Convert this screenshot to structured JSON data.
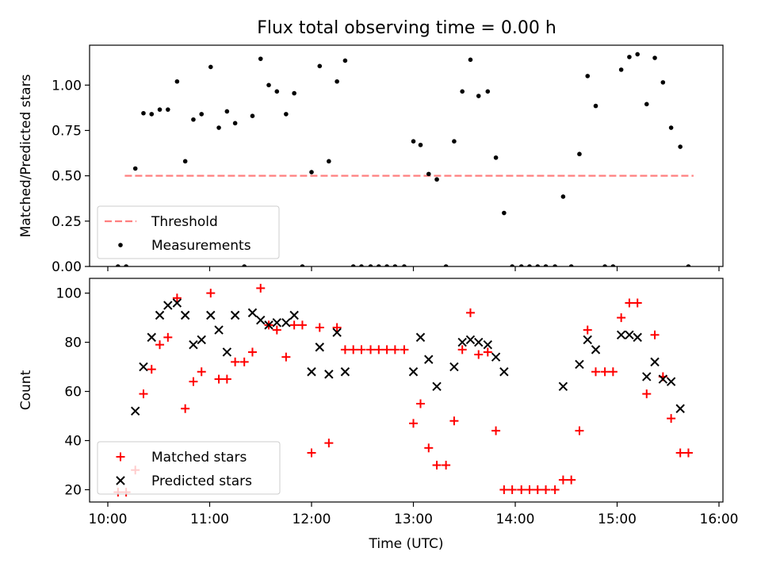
{
  "title": "Flux total observing time = 0.00 h",
  "colors": {
    "threshold": "#ff7f7f",
    "measurement": "#000000",
    "matched": "#ff0000",
    "predicted": "#000000"
  },
  "chart_data": [
    {
      "type": "scatter",
      "panel": "top",
      "ylabel": "Matched/Predicted stars",
      "xlabel": "",
      "xlim": [
        "10:00",
        "16:00"
      ],
      "ylim": [
        0,
        1.22
      ],
      "yticks": [
        0.0,
        0.25,
        0.5,
        0.75,
        1.0
      ],
      "ytick_labels": [
        "0.00",
        "0.25",
        "0.50",
        "0.75",
        "1.00"
      ],
      "legend": {
        "position": "lower-left",
        "entries": [
          "Threshold",
          "Measurements"
        ]
      },
      "threshold": {
        "name": "Threshold",
        "value": 0.5,
        "x_start": "10:10",
        "x_end": "15:45"
      },
      "series": [
        {
          "name": "Measurements",
          "marker": "dot",
          "points": [
            [
              10.1,
              0.0
            ],
            [
              10.18,
              0.0
            ],
            [
              10.27,
              0.54
            ],
            [
              10.35,
              0.845
            ],
            [
              10.43,
              0.84
            ],
            [
              10.51,
              0.865
            ],
            [
              10.59,
              0.865
            ],
            [
              10.68,
              1.02
            ],
            [
              10.76,
              0.58
            ],
            [
              10.84,
              0.81
            ],
            [
              10.92,
              0.84
            ],
            [
              11.01,
              1.1
            ],
            [
              11.09,
              0.765
            ],
            [
              11.17,
              0.855
            ],
            [
              11.25,
              0.79
            ],
            [
              11.34,
              0.0
            ],
            [
              11.42,
              0.83
            ],
            [
              11.5,
              1.145
            ],
            [
              11.58,
              1.0
            ],
            [
              11.66,
              0.965
            ],
            [
              11.75,
              0.84
            ],
            [
              11.83,
              0.955
            ],
            [
              11.91,
              0.0
            ],
            [
              12.0,
              0.52
            ],
            [
              12.08,
              1.105
            ],
            [
              12.17,
              0.58
            ],
            [
              12.25,
              1.02
            ],
            [
              12.33,
              1.135
            ],
            [
              12.41,
              0.0
            ],
            [
              12.49,
              0.0
            ],
            [
              12.58,
              0.0
            ],
            [
              12.66,
              0.0
            ],
            [
              12.74,
              0.0
            ],
            [
              12.82,
              0.0
            ],
            [
              12.91,
              0.0
            ],
            [
              13.0,
              0.69
            ],
            [
              13.07,
              0.67
            ],
            [
              13.15,
              0.51
            ],
            [
              13.23,
              0.48
            ],
            [
              13.32,
              0.0
            ],
            [
              13.4,
              0.69
            ],
            [
              13.48,
              0.965
            ],
            [
              13.56,
              1.14
            ],
            [
              13.64,
              0.94
            ],
            [
              13.73,
              0.965
            ],
            [
              13.81,
              0.6
            ],
            [
              13.89,
              0.295
            ],
            [
              13.97,
              0.0
            ],
            [
              14.06,
              0.0
            ],
            [
              14.14,
              0.0
            ],
            [
              14.22,
              0.0
            ],
            [
              14.3,
              0.0
            ],
            [
              14.39,
              0.0
            ],
            [
              14.47,
              0.385
            ],
            [
              14.55,
              0.0
            ],
            [
              14.63,
              0.62
            ],
            [
              14.71,
              1.05
            ],
            [
              14.79,
              0.885
            ],
            [
              14.88,
              0.0
            ],
            [
              14.96,
              0.0
            ],
            [
              15.04,
              1.085
            ],
            [
              15.12,
              1.155
            ],
            [
              15.2,
              1.17
            ],
            [
              15.29,
              0.895
            ],
            [
              15.37,
              1.15
            ],
            [
              15.45,
              1.015
            ],
            [
              15.53,
              0.765
            ],
            [
              15.62,
              0.66
            ],
            [
              15.7,
              0.0
            ]
          ]
        }
      ]
    },
    {
      "type": "scatter",
      "panel": "bottom",
      "ylabel": "Count",
      "xlabel": "Time (UTC)",
      "xlim": [
        "10:00",
        "16:00"
      ],
      "ylim": [
        15,
        106
      ],
      "xticks": [
        "10:00",
        "11:00",
        "12:00",
        "13:00",
        "14:00",
        "15:00",
        "16:00"
      ],
      "yticks": [
        20,
        40,
        60,
        80,
        100
      ],
      "ytick_labels": [
        "20",
        "40",
        "60",
        "80",
        "100"
      ],
      "legend": {
        "position": "lower-left",
        "entries": [
          "Matched stars",
          "Predicted stars"
        ]
      },
      "series": [
        {
          "name": "Matched stars",
          "marker": "plus",
          "points": [
            [
              10.1,
              19
            ],
            [
              10.18,
              19
            ],
            [
              10.27,
              28
            ],
            [
              10.35,
              59
            ],
            [
              10.43,
              69
            ],
            [
              10.51,
              79
            ],
            [
              10.59,
              82
            ],
            [
              10.68,
              98
            ],
            [
              10.76,
              53
            ],
            [
              10.84,
              64
            ],
            [
              10.92,
              68
            ],
            [
              11.01,
              100
            ],
            [
              11.09,
              65
            ],
            [
              11.17,
              65
            ],
            [
              11.25,
              72
            ],
            [
              11.34,
              72
            ],
            [
              11.42,
              76
            ],
            [
              11.5,
              102
            ],
            [
              11.58,
              87
            ],
            [
              11.66,
              85
            ],
            [
              11.75,
              74
            ],
            [
              11.83,
              87
            ],
            [
              11.91,
              87
            ],
            [
              12.0,
              35
            ],
            [
              12.08,
              86
            ],
            [
              12.17,
              39
            ],
            [
              12.25,
              86
            ],
            [
              12.33,
              77
            ],
            [
              12.41,
              77
            ],
            [
              12.49,
              77
            ],
            [
              12.58,
              77
            ],
            [
              12.66,
              77
            ],
            [
              12.74,
              77
            ],
            [
              12.82,
              77
            ],
            [
              12.91,
              77
            ],
            [
              13.0,
              47
            ],
            [
              13.07,
              55
            ],
            [
              13.15,
              37
            ],
            [
              13.23,
              30
            ],
            [
              13.32,
              30
            ],
            [
              13.4,
              48
            ],
            [
              13.48,
              77
            ],
            [
              13.56,
              92
            ],
            [
              13.64,
              75
            ],
            [
              13.73,
              76
            ],
            [
              13.81,
              44
            ],
            [
              13.89,
              20
            ],
            [
              13.97,
              20
            ],
            [
              14.06,
              20
            ],
            [
              14.14,
              20
            ],
            [
              14.22,
              20
            ],
            [
              14.3,
              20
            ],
            [
              14.39,
              20
            ],
            [
              14.47,
              24
            ],
            [
              14.55,
              24
            ],
            [
              14.63,
              44
            ],
            [
              14.71,
              85
            ],
            [
              14.79,
              68
            ],
            [
              14.88,
              68
            ],
            [
              14.96,
              68
            ],
            [
              15.04,
              90
            ],
            [
              15.12,
              96
            ],
            [
              15.2,
              96
            ],
            [
              15.29,
              59
            ],
            [
              15.37,
              83
            ],
            [
              15.45,
              66
            ],
            [
              15.53,
              49
            ],
            [
              15.62,
              35
            ],
            [
              15.7,
              35
            ]
          ]
        },
        {
          "name": "Predicted stars",
          "marker": "x",
          "points": [
            [
              10.27,
              52
            ],
            [
              10.35,
              70
            ],
            [
              10.43,
              82
            ],
            [
              10.51,
              91
            ],
            [
              10.59,
              95
            ],
            [
              10.68,
              96
            ],
            [
              10.76,
              91
            ],
            [
              10.84,
              79
            ],
            [
              10.92,
              81
            ],
            [
              11.01,
              91
            ],
            [
              11.09,
              85
            ],
            [
              11.17,
              76
            ],
            [
              11.25,
              91
            ],
            [
              11.42,
              92
            ],
            [
              11.5,
              89
            ],
            [
              11.58,
              87
            ],
            [
              11.66,
              88
            ],
            [
              11.75,
              88
            ],
            [
              11.83,
              91
            ],
            [
              12.0,
              68
            ],
            [
              12.08,
              78
            ],
            [
              12.17,
              67
            ],
            [
              12.25,
              84
            ],
            [
              12.33,
              68
            ],
            [
              13.0,
              68
            ],
            [
              13.07,
              82
            ],
            [
              13.15,
              73
            ],
            [
              13.23,
              62
            ],
            [
              13.4,
              70
            ],
            [
              13.48,
              80
            ],
            [
              13.56,
              81
            ],
            [
              13.64,
              80
            ],
            [
              13.73,
              79
            ],
            [
              13.81,
              74
            ],
            [
              13.89,
              68
            ],
            [
              14.47,
              62
            ],
            [
              14.63,
              71
            ],
            [
              14.71,
              81
            ],
            [
              14.79,
              77
            ],
            [
              15.04,
              83
            ],
            [
              15.12,
              83
            ],
            [
              15.2,
              82
            ],
            [
              15.29,
              66
            ],
            [
              15.37,
              72
            ],
            [
              15.45,
              65
            ],
            [
              15.53,
              64
            ],
            [
              15.62,
              53
            ]
          ]
        }
      ]
    }
  ]
}
